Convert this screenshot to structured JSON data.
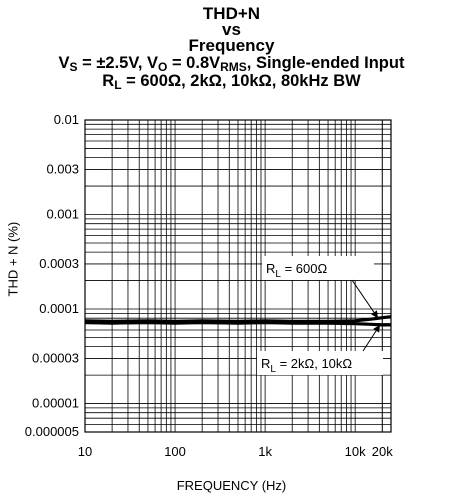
{
  "title": {
    "line1": "THD+N",
    "line2": "vs",
    "line3": "Frequency",
    "line4": {
      "vs_label": "V",
      "vs_sub": "S",
      "vs_text": " = ±2.5V, V",
      "vo_sub": "O",
      "vo_text": " = 0.8V",
      "vo_unit_sub": "RMS",
      "tail": ", Single-ended Input"
    },
    "line5": {
      "rl_label": "R",
      "rl_sub": "L",
      "tail": " = 600Ω, 2kΩ, 10kΩ, 80kHz BW"
    }
  },
  "chart_data": {
    "type": "line",
    "xlabel": "FREQUENCY (Hz)",
    "ylabel": "THD + N (%)",
    "x_scale": "log",
    "y_scale": "log",
    "xlim": [
      10,
      25000
    ],
    "ylim": [
      5e-06,
      0.01
    ],
    "x_ticks": [
      {
        "value": 10,
        "label": "10"
      },
      {
        "value": 100,
        "label": "100"
      },
      {
        "value": 1000,
        "label": "1k"
      },
      {
        "value": 10000,
        "label": "10k"
      },
      {
        "value": 20000,
        "label": "20k"
      }
    ],
    "y_ticks": [
      {
        "value": 0.01,
        "label": "0.01"
      },
      {
        "value": 0.003,
        "label": "0.003"
      },
      {
        "value": 0.001,
        "label": "0.001"
      },
      {
        "value": 0.0003,
        "label": "0.0003"
      },
      {
        "value": 0.0001,
        "label": "0.0001"
      },
      {
        "value": 3e-05,
        "label": "0.00003"
      },
      {
        "value": 1e-05,
        "label": "0.00001"
      },
      {
        "value": 5e-06,
        "label": "0.000005"
      }
    ],
    "grid": true,
    "series": [
      {
        "name": "R_L = 600Ω",
        "x": [
          10,
          20,
          50,
          100,
          200,
          500,
          1000,
          2000,
          5000,
          10000,
          15000,
          20000,
          25000
        ],
        "y": [
          7.5e-05,
          7.4e-05,
          7.5e-05,
          7.4e-05,
          7.5e-05,
          7.4e-05,
          7.5e-05,
          7.4e-05,
          7.4e-05,
          7.5e-05,
          7.8e-05,
          8.1e-05,
          8.3e-05
        ]
      },
      {
        "name": "R_L = 2kΩ, 10kΩ",
        "x": [
          10,
          20,
          50,
          100,
          200,
          500,
          1000,
          2000,
          5000,
          10000,
          15000,
          20000,
          25000
        ],
        "y": [
          7.2e-05,
          7.1e-05,
          7.2e-05,
          7.1e-05,
          7.2e-05,
          7.1e-05,
          7.2e-05,
          7.1e-05,
          7.1e-05,
          7e-05,
          6.9e-05,
          6.8e-05,
          6.8e-05
        ]
      }
    ],
    "annotations": [
      {
        "label": "R",
        "sub": "L",
        "text": " = 600Ω",
        "series": "R_L = 600Ω"
      },
      {
        "label": "R",
        "sub": "L",
        "text": " = 2kΩ, 10kΩ",
        "series": "R_L = 2kΩ, 10kΩ"
      }
    ]
  }
}
